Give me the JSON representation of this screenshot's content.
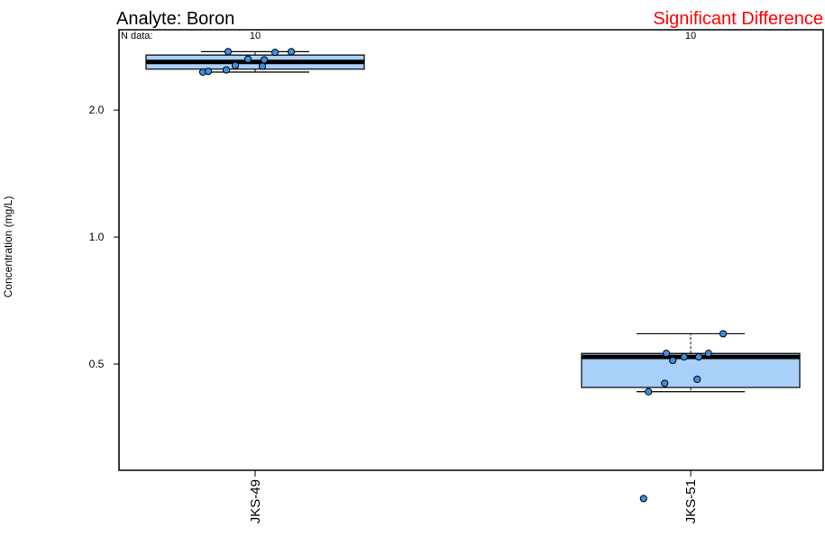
{
  "chart_data": {
    "type": "box",
    "title": "Analyte: Boron",
    "status_text": "Significant Difference",
    "status_color": "#ff0000",
    "ylabel": "Concentration (mg/L)",
    "y_scale": "log",
    "ylim": [
      0.28,
      3.1
    ],
    "y_ticks": [
      0.5,
      1.0,
      2.0
    ],
    "y_tick_labels": [
      "0.5",
      "1.0",
      "2.0"
    ],
    "n_data_label": "N data:",
    "box_fill": "#a8d0f8",
    "point_fill": "#3a8ee8",
    "groups": [
      {
        "name": "JKS-49",
        "n": "10",
        "whisker_low": 2.46,
        "q1": 2.5,
        "median": 2.6,
        "q3": 2.7,
        "whisker_high": 2.75,
        "points": [
          2.46,
          2.47,
          2.49,
          2.54,
          2.55,
          2.63,
          2.64,
          2.74,
          2.75,
          2.75
        ]
      },
      {
        "name": "JKS-51",
        "n": "10",
        "whisker_low": 0.43,
        "q1": 0.44,
        "median": 0.52,
        "q3": 0.53,
        "whisker_high": 0.59,
        "points": [
          0.24,
          0.43,
          0.45,
          0.46,
          0.51,
          0.52,
          0.52,
          0.53,
          0.53,
          0.59
        ]
      }
    ]
  }
}
